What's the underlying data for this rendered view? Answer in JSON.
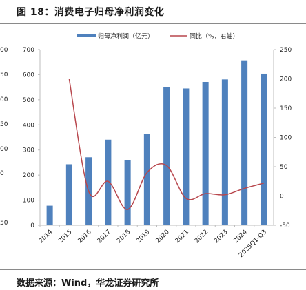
{
  "header": {
    "title": "图 18：消费电子归母净利润变化"
  },
  "footer": {
    "source": "数据来源：Wind，华龙证券研究所"
  },
  "left_edge_ticks": [
    "00",
    "50",
    "00",
    "50",
    "00",
    "0",
    "50"
  ],
  "colors": {
    "bar": "#4f81bd",
    "line": "#b8474d",
    "axis": "#bdbdbd"
  },
  "chart_data": {
    "type": "bar",
    "title": "",
    "xlabel": "",
    "ylabel": "",
    "categories": [
      "2014",
      "2015",
      "2016",
      "2017",
      "2018",
      "2019",
      "2020",
      "2021",
      "2022",
      "2023",
      "2024",
      "2025Q1-Q3"
    ],
    "series": [
      {
        "name": "归母净利润（亿元）",
        "type": "bar",
        "axis": "left",
        "values": [
          78,
          243,
          271,
          341,
          259,
          364,
          550,
          545,
          571,
          581,
          657,
          604
        ]
      },
      {
        "name": "同比（%，右轴）",
        "type": "line",
        "axis": "right",
        "values": [
          null,
          200,
          8,
          25,
          -23,
          40,
          52,
          -4,
          4,
          2,
          13,
          22
        ]
      }
    ],
    "ylim_left": [
      0,
      700
    ],
    "yticks_left": [
      0,
      100,
      200,
      300,
      400,
      500,
      600,
      700
    ],
    "ylim_right": [
      -50,
      250
    ],
    "yticks_right": [
      -50,
      0,
      50,
      100,
      150,
      200,
      250
    ],
    "legend_position": "top-center",
    "grid": false
  }
}
